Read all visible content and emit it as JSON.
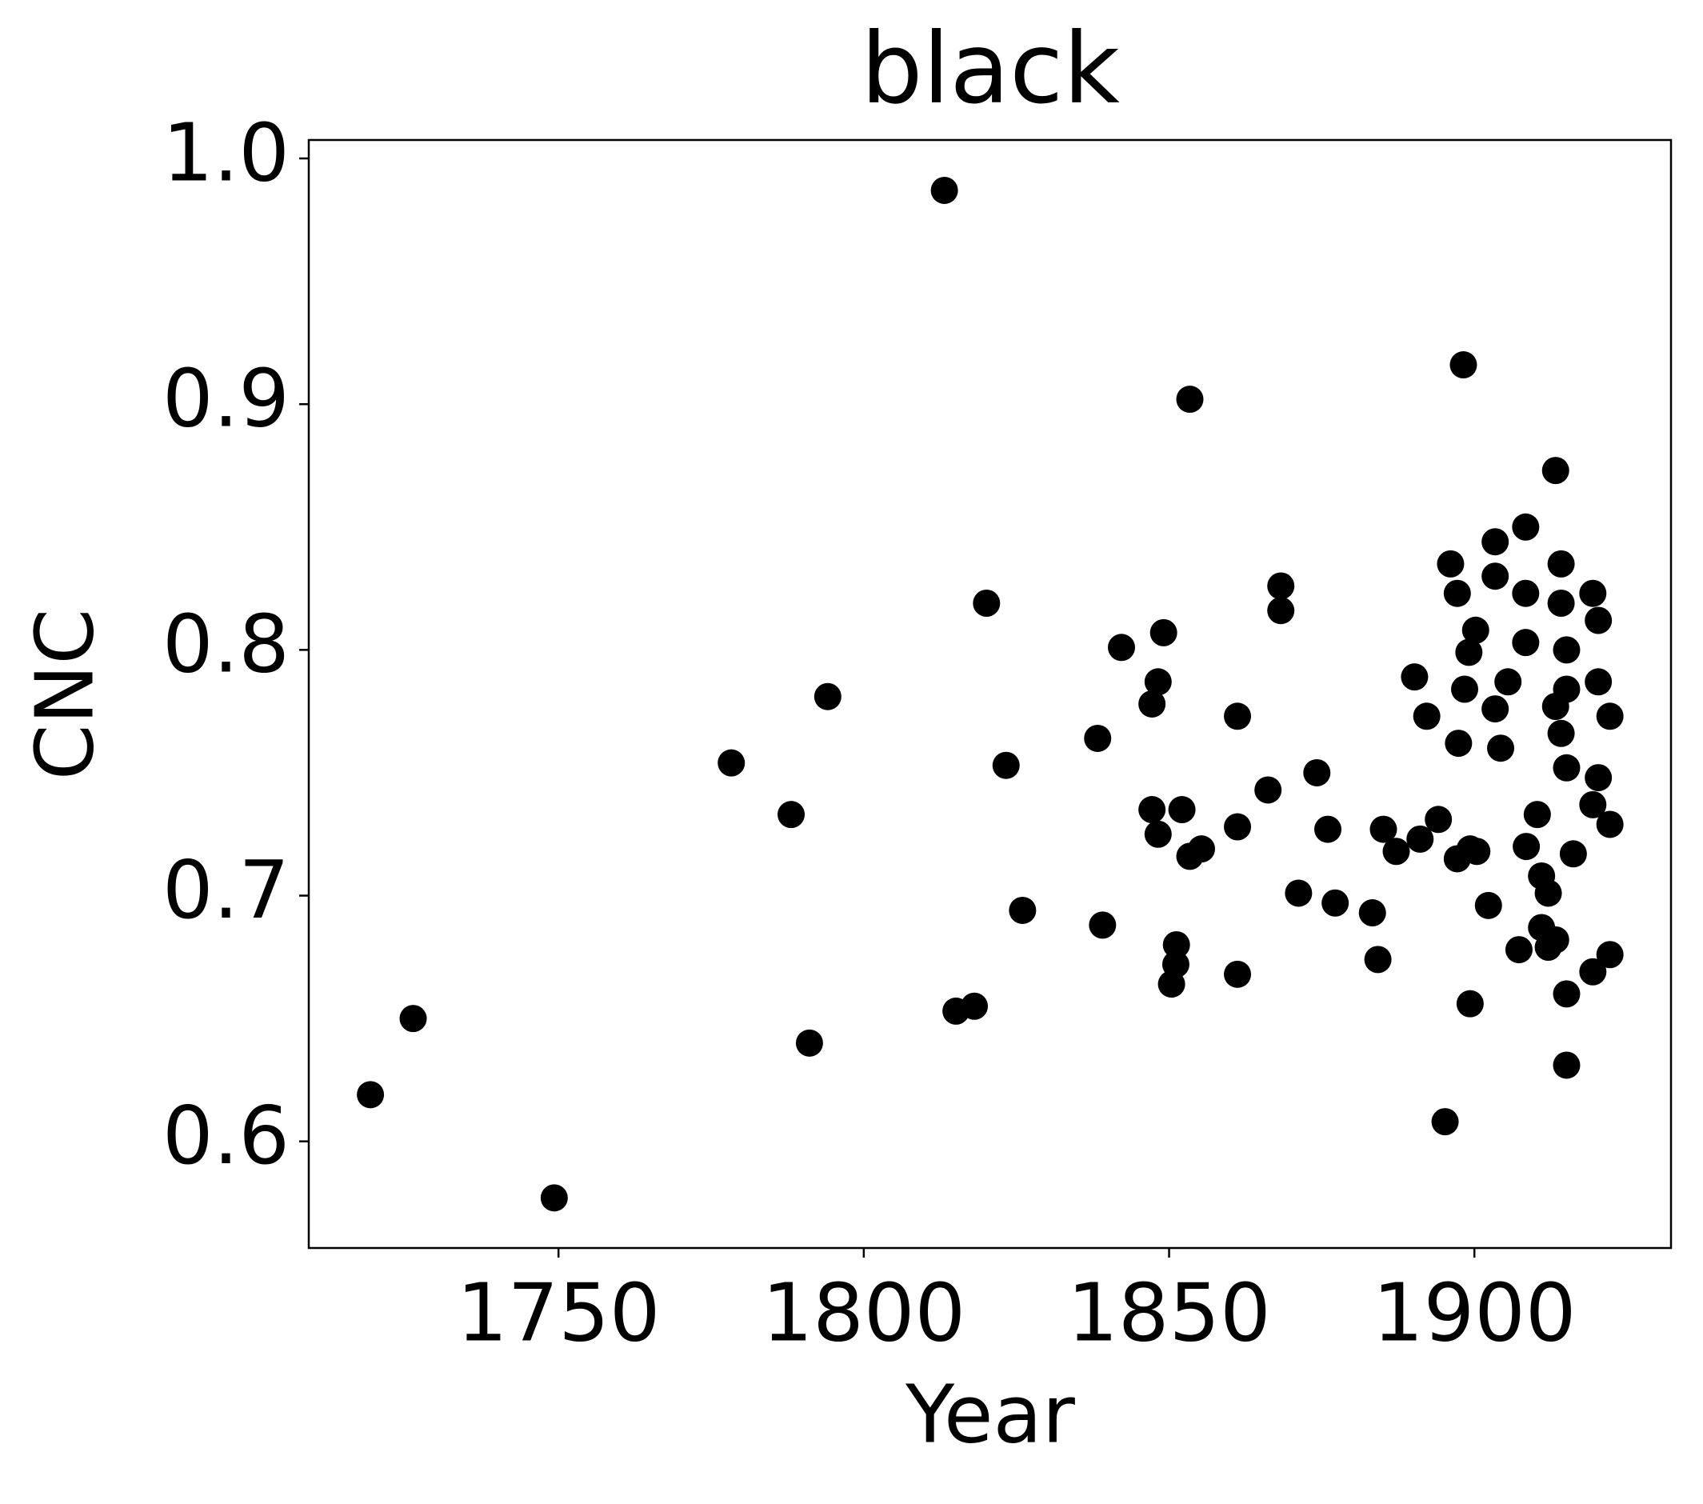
{
  "chart_data": {
    "type": "scatter",
    "title": "black",
    "x_label": "Year",
    "y_label": "CNC",
    "color": "#000000",
    "x": [
      1719.2,
      1726.2,
      1749.3,
      1778.3,
      1788.1,
      1791.1,
      1794.1,
      1813.2,
      1815.1,
      1818.1,
      1820.1,
      1823.3,
      1826.0,
      1838.3,
      1839.1,
      1842.2,
      1847.2,
      1848.2,
      1849.1,
      1847.2,
      1848.2,
      1850.4,
      1851.1,
      1851.2,
      1852.1,
      1853.4,
      1855.3,
      1853.4,
      1861.2,
      1861.2,
      1861.2,
      1866.2,
      1868.3,
      1868.3,
      1871.2,
      1874.2,
      1876.0,
      1877.2,
      1883.3,
      1884.2,
      1885.1,
      1887.2,
      1890.2,
      1891.1,
      1892.2,
      1894.1,
      1895.2,
      1896.1,
      1897.2,
      1897.2,
      1897.4,
      1898.2,
      1898.4,
      1899.1,
      1899.3,
      1900.2,
      1899.3,
      1900.4,
      1902.3,
      1903.4,
      1903.4,
      1903.4,
      1904.3,
      1905.5,
      1907.3,
      1908.4,
      1908.4,
      1908.4,
      1908.5,
      1910.3,
      1911.0,
      1912.1,
      1911.0,
      1912.1,
      1913.3,
      1913.3,
      1913.3,
      1914.2,
      1914.2,
      1914.2,
      1915.1,
      1915.1,
      1915.1,
      1915.1,
      1915.1,
      1916.2,
      1919.4,
      1919.4,
      1919.4,
      1920.3,
      1920.3,
      1920.3,
      1922.2,
      1922.2,
      1922.2
    ],
    "values": [
      0.619,
      0.65,
      0.577,
      0.754,
      0.733,
      0.64,
      0.781,
      0.987,
      0.653,
      0.655,
      0.819,
      0.753,
      0.694,
      0.764,
      0.688,
      0.801,
      0.778,
      0.787,
      0.807,
      0.735,
      0.725,
      0.664,
      0.672,
      0.68,
      0.735,
      0.716,
      0.719,
      0.902,
      0.773,
      0.728,
      0.668,
      0.743,
      0.826,
      0.816,
      0.701,
      0.75,
      0.727,
      0.697,
      0.693,
      0.674,
      0.727,
      0.718,
      0.789,
      0.723,
      0.773,
      0.731,
      0.608,
      0.835,
      0.823,
      0.715,
      0.762,
      0.916,
      0.784,
      0.799,
      0.656,
      0.808,
      0.719,
      0.718,
      0.696,
      0.844,
      0.83,
      0.776,
      0.76,
      0.787,
      0.678,
      0.85,
      0.823,
      0.803,
      0.72,
      0.733,
      0.708,
      0.701,
      0.687,
      0.679,
      0.873,
      0.777,
      0.682,
      0.835,
      0.819,
      0.766,
      0.8,
      0.784,
      0.752,
      0.66,
      0.631,
      0.717,
      0.823,
      0.737,
      0.669,
      0.812,
      0.787,
      0.748,
      0.773,
      0.729,
      0.676
    ],
    "xlim": [
      1709.1,
      1932.2
    ],
    "xticks": [
      1750,
      1800,
      1850,
      1900
    ],
    "ylim": [
      0.5566,
      1.0075
    ],
    "yticks": [
      0.6,
      0.7,
      0.8,
      0.9,
      {
        "value": 1,
        "label": "1.0"
      }
    ]
  }
}
